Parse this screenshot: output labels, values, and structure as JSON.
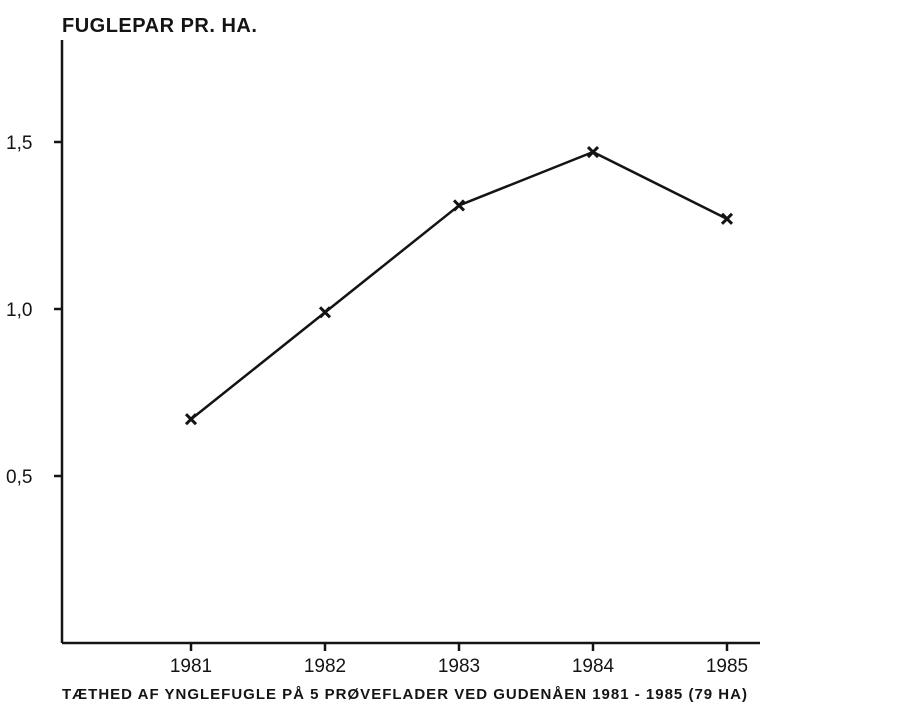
{
  "chart_data": {
    "type": "line",
    "title": "",
    "ylabel": "FUGLEPAR PR. HA.",
    "xlabel": "",
    "caption": "TÆTHED AF YNGLEFUGLE PÅ 5 PRØVEFLADER VED GUDENÅEN 1981 - 1985 (79 HA)",
    "categories": [
      "1981",
      "1982",
      "1983",
      "1984",
      "1985"
    ],
    "series": [
      {
        "values": [
          0.67,
          0.99,
          1.31,
          1.47,
          1.27
        ]
      }
    ],
    "ylim": [
      0,
      1.85
    ],
    "yticks": [
      0.5,
      1.0,
      1.5
    ],
    "ytick_labels": [
      "0,5",
      "1,0",
      "1,5"
    ],
    "marker": "x",
    "grid": false,
    "legend": "none"
  },
  "colors": {
    "ink": "#141414",
    "background": "#ffffff"
  }
}
